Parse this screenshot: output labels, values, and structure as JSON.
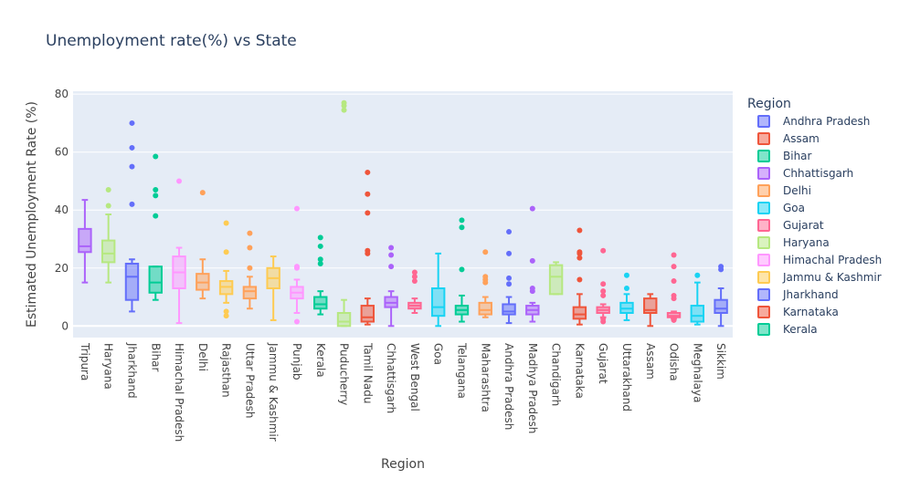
{
  "chart_data": {
    "type": "box",
    "title": "Unemployment rate(%) vs State",
    "xlabel": "Region",
    "ylabel": "Estimated Unemployment Rate (%)",
    "ylim": [
      -4,
      81
    ],
    "yticks": [
      0,
      20,
      40,
      60,
      80
    ],
    "grid": true,
    "legend": {
      "title": "Region",
      "placement": "right",
      "entries": [
        "Andhra Pradesh",
        "Assam",
        "Bihar",
        "Chhattisgarh",
        "Delhi",
        "Goa",
        "Gujarat",
        "Haryana",
        "Himachal Pradesh",
        "Jammu & Kashmir",
        "Jharkhand",
        "Karnataka",
        "Kerala"
      ]
    },
    "colors": [
      "#636efa",
      "#EF553B",
      "#00cc96",
      "#ab63fa",
      "#FFA15A",
      "#19d3f3",
      "#FF6692",
      "#B6E880",
      "#FF97FF",
      "#FECB52"
    ],
    "categories": [
      "Tripura",
      "Haryana",
      "Jharkhand",
      "Bihar",
      "Himachal Pradesh",
      "Delhi",
      "Rajasthan",
      "Uttar Pradesh",
      "Jammu & Kashmir",
      "Punjab",
      "Kerala",
      "Puducherry",
      "Tamil Nadu",
      "Chhattisgarh",
      "West Bengal",
      "Goa",
      "Telangana",
      "Maharashtra",
      "Andhra Pradesh",
      "Madhya Pradesh",
      "Chandigarh",
      "Karnataka",
      "Gujarat",
      "Uttarakhand",
      "Assam",
      "Odisha",
      "Meghalaya",
      "Sikkim"
    ],
    "boxes": [
      {
        "state": "Tripura",
        "color": "#ab63fa",
        "min": 15,
        "q1": 25.5,
        "median": 27.5,
        "q3": 33.5,
        "max": 43.5,
        "outliers": []
      },
      {
        "state": "Haryana",
        "color": "#B6E880",
        "min": 15,
        "q1": 22,
        "median": 25,
        "q3": 29.5,
        "max": 38.5,
        "outliers": [
          41.5,
          47
        ]
      },
      {
        "state": "Jharkhand",
        "color": "#636efa",
        "min": 5,
        "q1": 9,
        "median": 17,
        "q3": 21.5,
        "max": 23,
        "outliers": [
          42,
          55,
          61.5,
          70
        ]
      },
      {
        "state": "Bihar",
        "color": "#00cc96",
        "min": 9,
        "q1": 11.5,
        "median": 15,
        "q3": 20.5,
        "max": 20.5,
        "outliers": [
          38,
          45,
          47,
          58.5
        ]
      },
      {
        "state": "Himachal Pradesh",
        "color": "#FF97FF",
        "min": 1,
        "q1": 13,
        "median": 18.5,
        "q3": 24,
        "max": 27,
        "outliers": [
          50
        ]
      },
      {
        "state": "Delhi",
        "color": "#FFA15A",
        "min": 9.5,
        "q1": 12.5,
        "median": 15,
        "q3": 18,
        "max": 23,
        "outliers": [
          46
        ]
      },
      {
        "state": "Rajasthan",
        "color": "#FECB52",
        "min": 8,
        "q1": 11,
        "median": 13.5,
        "q3": 15.5,
        "max": 19,
        "outliers": [
          3.5,
          5,
          25.5,
          35.5
        ]
      },
      {
        "state": "Uttar Pradesh",
        "color": "#FFA15A",
        "min": 6,
        "q1": 9.5,
        "median": 12,
        "q3": 13.5,
        "max": 17,
        "outliers": [
          20,
          27,
          32
        ]
      },
      {
        "state": "Jammu & Kashmir",
        "color": "#FECB52",
        "min": 2,
        "q1": 13,
        "median": 16.5,
        "q3": 20,
        "max": 24,
        "outliers": []
      },
      {
        "state": "Punjab",
        "color": "#FF97FF",
        "min": 4.5,
        "q1": 9.5,
        "median": 11.5,
        "q3": 13.5,
        "max": 16,
        "outliers": [
          1.5,
          20,
          20.5,
          40.5
        ]
      },
      {
        "state": "Kerala",
        "color": "#00cc96",
        "min": 4,
        "q1": 6,
        "median": 7.5,
        "q3": 10,
        "max": 12,
        "outliers": [
          21.5,
          23,
          27.5,
          30.5
        ]
      },
      {
        "state": "Puducherry",
        "color": "#B6E880",
        "min": 0,
        "q1": 0,
        "median": 1.5,
        "q3": 4.5,
        "max": 9,
        "outliers": [
          74.5,
          76,
          77
        ]
      },
      {
        "state": "Tamil Nadu",
        "color": "#EF553B",
        "min": 0.5,
        "q1": 1.5,
        "median": 3,
        "q3": 7,
        "max": 9.5,
        "outliers": [
          25,
          26,
          39,
          45.5,
          53
        ]
      },
      {
        "state": "Chhattisgarh",
        "color": "#ab63fa",
        "min": 0,
        "q1": 6.5,
        "median": 8,
        "q3": 10,
        "max": 12,
        "outliers": [
          20.5,
          24.5,
          27
        ]
      },
      {
        "state": "West Bengal",
        "color": "#FF6692",
        "min": 4.5,
        "q1": 6,
        "median": 7,
        "q3": 8,
        "max": 9.5,
        "outliers": [
          15.5,
          17,
          18.5
        ]
      },
      {
        "state": "Goa",
        "color": "#19d3f3",
        "min": 0,
        "q1": 3.5,
        "median": 6.5,
        "q3": 13,
        "max": 25,
        "outliers": []
      },
      {
        "state": "Telangana",
        "color": "#00cc96",
        "min": 1.5,
        "q1": 4,
        "median": 5.5,
        "q3": 7,
        "max": 10.5,
        "outliers": [
          19.5,
          34,
          36.5
        ]
      },
      {
        "state": "Maharashtra",
        "color": "#FFA15A",
        "min": 3,
        "q1": 4,
        "median": 5.5,
        "q3": 8,
        "max": 10,
        "outliers": [
          15,
          16,
          17,
          25.5
        ]
      },
      {
        "state": "Andhra Pradesh",
        "color": "#636efa",
        "min": 1,
        "q1": 4,
        "median": 5,
        "q3": 7.5,
        "max": 10,
        "outliers": [
          14.5,
          16.5,
          25,
          32.5
        ]
      },
      {
        "state": "Madhya Pradesh",
        "color": "#ab63fa",
        "min": 1.5,
        "q1": 4,
        "median": 5.5,
        "q3": 7,
        "max": 8,
        "outliers": [
          12,
          13,
          22.5,
          40.5
        ]
      },
      {
        "state": "Chandigarh",
        "color": "#B6E880",
        "min": 11,
        "q1": 11,
        "median": 17,
        "q3": 21,
        "max": 22,
        "outliers": []
      },
      {
        "state": "Karnataka",
        "color": "#EF553B",
        "min": 0.5,
        "q1": 2.5,
        "median": 4,
        "q3": 6.5,
        "max": 11,
        "outliers": [
          16,
          23.5,
          25,
          25.5,
          33
        ]
      },
      {
        "state": "Gujarat",
        "color": "#FF6692",
        "min": 3,
        "q1": 4.5,
        "median": 5.5,
        "q3": 6.5,
        "max": 7.5,
        "outliers": [
          1.5,
          2.5,
          10.5,
          12,
          14.5,
          26
        ]
      },
      {
        "state": "Uttarakhand",
        "color": "#19d3f3",
        "min": 2,
        "q1": 4.5,
        "median": 6,
        "q3": 8,
        "max": 11,
        "outliers": [
          13,
          17.5
        ]
      },
      {
        "state": "Assam",
        "color": "#EF553B",
        "min": 0,
        "q1": 4.5,
        "median": 5.5,
        "q3": 9.5,
        "max": 11,
        "outliers": []
      },
      {
        "state": "Odisha",
        "color": "#FF6692",
        "min": 2.5,
        "q1": 3,
        "median": 3.5,
        "q3": 4.5,
        "max": 5,
        "outliers": [
          2,
          9.5,
          10.5,
          15.5,
          20.5,
          24.5
        ]
      },
      {
        "state": "Meghalaya",
        "color": "#19d3f3",
        "min": 0.5,
        "q1": 1.5,
        "median": 3.5,
        "q3": 7,
        "max": 15,
        "outliers": [
          17.5
        ]
      },
      {
        "state": "Sikkim",
        "color": "#636efa",
        "min": 0,
        "q1": 4.5,
        "median": 6,
        "q3": 9,
        "max": 13,
        "outliers": [
          19.5,
          20.5
        ]
      }
    ]
  }
}
